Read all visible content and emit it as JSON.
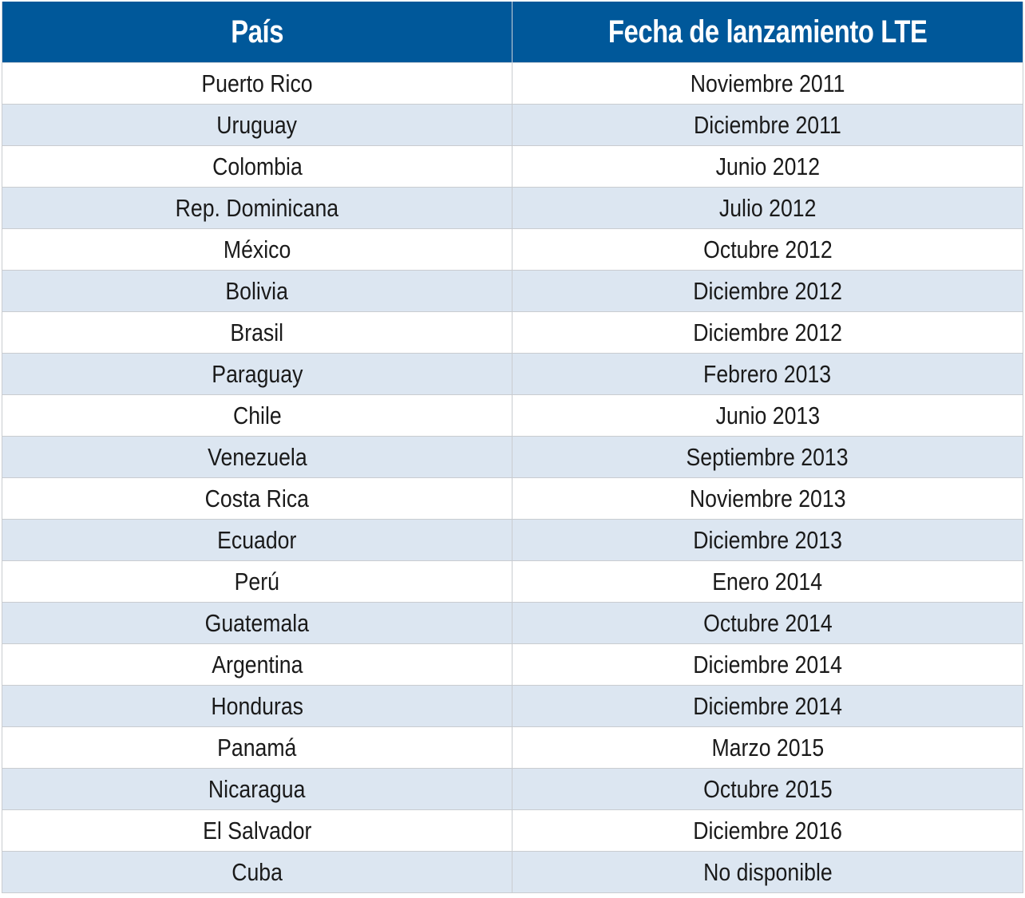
{
  "table": {
    "header_bg": "#00589a",
    "headers": [
      "País",
      "Fecha de lanzamiento LTE"
    ],
    "rows": [
      {
        "pais": "Puerto Rico",
        "fecha": "Noviembre 2011"
      },
      {
        "pais": "Uruguay",
        "fecha": "Diciembre 2011"
      },
      {
        "pais": "Colombia",
        "fecha": "Junio 2012"
      },
      {
        "pais": "Rep. Dominicana",
        "fecha": "Julio 2012"
      },
      {
        "pais": "México",
        "fecha": "Octubre 2012"
      },
      {
        "pais": "Bolivia",
        "fecha": "Diciembre 2012"
      },
      {
        "pais": "Brasil",
        "fecha": "Diciembre 2012"
      },
      {
        "pais": "Paraguay",
        "fecha": "Febrero 2013"
      },
      {
        "pais": "Chile",
        "fecha": "Junio 2013"
      },
      {
        "pais": "Venezuela",
        "fecha": "Septiembre 2013"
      },
      {
        "pais": "Costa Rica",
        "fecha": "Noviembre 2013"
      },
      {
        "pais": "Ecuador",
        "fecha": "Diciembre 2013"
      },
      {
        "pais": "Perú",
        "fecha": "Enero 2014"
      },
      {
        "pais": "Guatemala",
        "fecha": "Octubre 2014"
      },
      {
        "pais": "Argentina",
        "fecha": "Diciembre 2014"
      },
      {
        "pais": "Honduras",
        "fecha": "Diciembre 2014"
      },
      {
        "pais": "Panamá",
        "fecha": "Marzo 2015"
      },
      {
        "pais": "Nicaragua",
        "fecha": "Octubre 2015"
      },
      {
        "pais": "El Salvador",
        "fecha": "Diciembre 2016"
      },
      {
        "pais": "Cuba",
        "fecha": "No disponible"
      }
    ]
  }
}
